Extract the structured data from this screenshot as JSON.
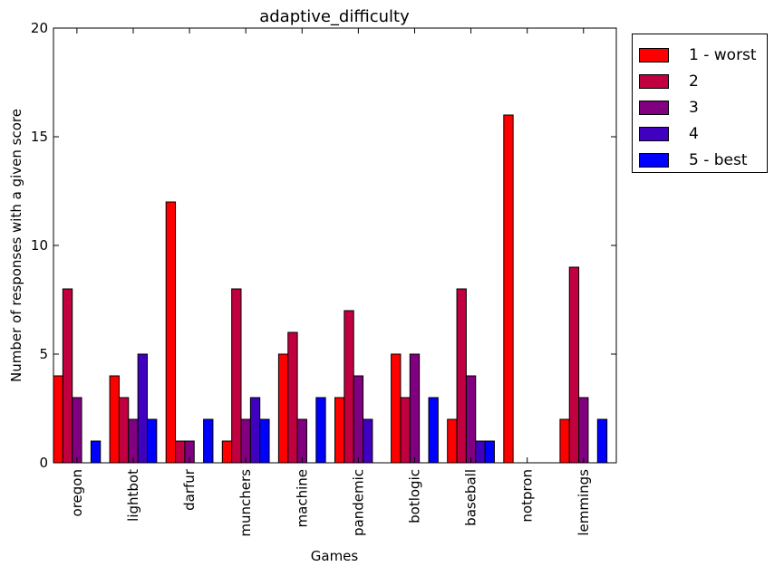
{
  "chart_data": {
    "type": "bar",
    "title": "adaptive_difficulty",
    "xlabel": "Games",
    "ylabel": "Number of responses with a given score",
    "ylim": [
      0,
      20
    ],
    "yticks": [
      "0",
      "5",
      "10",
      "15",
      "20"
    ],
    "categories": [
      "oregon",
      "lightbot",
      "darfur",
      "munchers",
      "machine",
      "pandemic",
      "botlogic",
      "baseball",
      "notpron",
      "lemmings"
    ],
    "series": [
      {
        "name": "1 - worst",
        "color": "#ff0000",
        "values": [
          4,
          4,
          12,
          1,
          5,
          3,
          5,
          2,
          16,
          2
        ]
      },
      {
        "name": "2",
        "color": "#c0003f",
        "values": [
          8,
          3,
          1,
          8,
          6,
          7,
          3,
          8,
          0,
          9
        ]
      },
      {
        "name": "3",
        "color": "#800080",
        "values": [
          3,
          2,
          1,
          2,
          2,
          4,
          5,
          4,
          0,
          3
        ]
      },
      {
        "name": "4",
        "color": "#4000c0",
        "values": [
          0,
          5,
          0,
          3,
          0,
          2,
          0,
          1,
          0,
          0
        ]
      },
      {
        "name": "5 - best",
        "color": "#0000ff",
        "values": [
          1,
          2,
          2,
          2,
          3,
          0,
          3,
          1,
          0,
          2
        ]
      }
    ],
    "legend_position": "upper-right-outside",
    "grid": false
  }
}
